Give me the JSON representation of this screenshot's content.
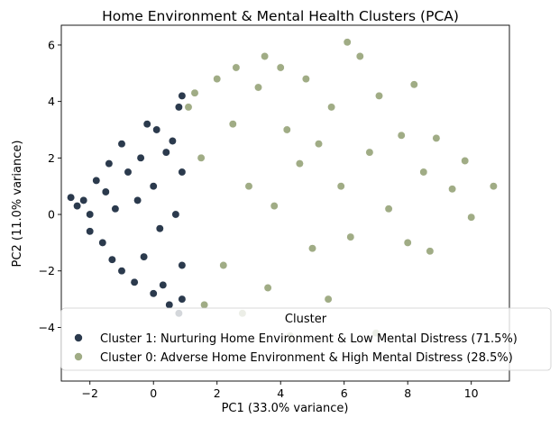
{
  "chart_data": {
    "type": "scatter",
    "title": "Home Environment & Mental Health Clusters (PCA)",
    "xlabel": "PC1 (33.0% variance)",
    "ylabel": "PC2 (11.0% variance)",
    "xlim": [
      -2.9,
      11.2
    ],
    "ylim": [
      -5.9,
      6.7
    ],
    "xticks": [
      -2,
      0,
      2,
      4,
      6,
      8,
      10
    ],
    "yticks": [
      -4,
      -2,
      0,
      2,
      4,
      6
    ],
    "grid": false,
    "legend": {
      "title": "Cluster",
      "placement": "lower-right",
      "entries": [
        "Cluster 1: Nurturing Home Environment & Low Mental Distress (71.5%)",
        "Cluster 0: Adverse Home Environment & High Mental Distress (28.5%)"
      ]
    },
    "series": [
      {
        "name": "Cluster 1: Nurturing Home Environment & Low Mental Distress (71.5%)",
        "color": "#2b3a4d",
        "points": [
          [
            -2.6,
            0.6
          ],
          [
            -2.4,
            0.3
          ],
          [
            -2.2,
            0.5
          ],
          [
            -2.0,
            0.0
          ],
          [
            -2.0,
            -0.6
          ],
          [
            -1.8,
            1.2
          ],
          [
            -1.6,
            -1.0
          ],
          [
            -1.5,
            0.8
          ],
          [
            -1.4,
            1.8
          ],
          [
            -1.3,
            -1.6
          ],
          [
            -1.2,
            0.2
          ],
          [
            -1.0,
            2.5
          ],
          [
            -1.0,
            -2.0
          ],
          [
            -0.8,
            1.5
          ],
          [
            -0.6,
            -2.4
          ],
          [
            -0.5,
            0.5
          ],
          [
            -0.4,
            2.0
          ],
          [
            -0.3,
            -1.5
          ],
          [
            -0.2,
            3.2
          ],
          [
            0.0,
            -2.8
          ],
          [
            0.0,
            1.0
          ],
          [
            0.1,
            3.0
          ],
          [
            0.2,
            -0.5
          ],
          [
            0.3,
            -2.5
          ],
          [
            0.4,
            2.2
          ],
          [
            0.5,
            -3.2
          ],
          [
            0.6,
            2.6
          ],
          [
            0.7,
            0.0
          ],
          [
            0.8,
            -3.5
          ],
          [
            0.8,
            3.8
          ],
          [
            0.9,
            4.2
          ],
          [
            0.9,
            1.5
          ],
          [
            0.9,
            -1.8
          ],
          [
            0.9,
            -3.0
          ]
        ]
      },
      {
        "name": "Cluster 0: Adverse Home Environment & High Mental Distress (28.5%)",
        "color": "#a0ac85",
        "points": [
          [
            1.1,
            3.8
          ],
          [
            1.3,
            4.3
          ],
          [
            1.5,
            2.0
          ],
          [
            1.6,
            -3.2
          ],
          [
            2.0,
            4.8
          ],
          [
            2.2,
            -1.8
          ],
          [
            2.5,
            3.2
          ],
          [
            2.6,
            5.2
          ],
          [
            2.8,
            -3.5
          ],
          [
            3.0,
            1.0
          ],
          [
            3.3,
            4.5
          ],
          [
            3.5,
            5.6
          ],
          [
            3.6,
            -2.6
          ],
          [
            3.8,
            0.3
          ],
          [
            4.0,
            5.2
          ],
          [
            4.2,
            3.0
          ],
          [
            4.3,
            -4.3
          ],
          [
            4.6,
            1.8
          ],
          [
            4.8,
            4.8
          ],
          [
            5.0,
            -1.2
          ],
          [
            5.2,
            2.5
          ],
          [
            5.5,
            -3.0
          ],
          [
            5.6,
            3.8
          ],
          [
            5.9,
            1.0
          ],
          [
            6.1,
            6.1
          ],
          [
            6.2,
            -0.8
          ],
          [
            6.5,
            5.6
          ],
          [
            6.8,
            2.2
          ],
          [
            7.0,
            -4.2
          ],
          [
            7.1,
            4.2
          ],
          [
            7.4,
            0.2
          ],
          [
            7.8,
            2.8
          ],
          [
            8.0,
            -1.0
          ],
          [
            8.2,
            4.6
          ],
          [
            8.5,
            1.5
          ],
          [
            8.7,
            -1.3
          ],
          [
            8.9,
            2.7
          ],
          [
            9.4,
            0.9
          ],
          [
            9.8,
            1.9
          ],
          [
            10.0,
            -0.1
          ],
          [
            10.7,
            1.0
          ]
        ]
      }
    ]
  }
}
